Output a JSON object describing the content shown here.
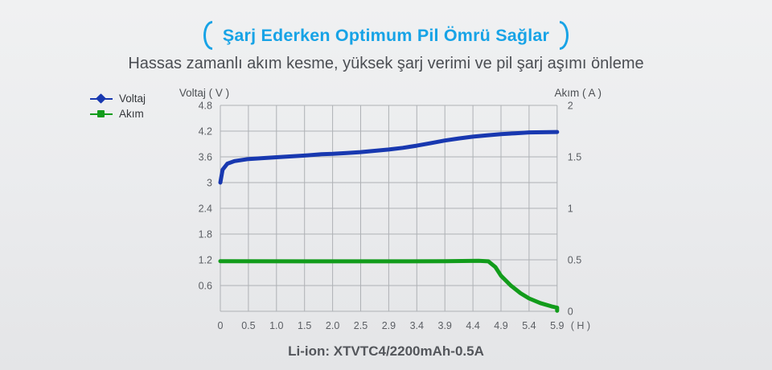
{
  "header": {
    "title": "Şarj Ederken Optimum Pil Ömrü Sağlar",
    "subtitle": "Hassas zamanlı akım kesme, yüksek şarj verimi ve pil şarj aşımı önleme",
    "accent_color": "#17a3e6"
  },
  "legend": {
    "items": [
      {
        "label": "Voltaj",
        "color": "#1838b0",
        "marker": "diamond"
      },
      {
        "label": "Akım",
        "color": "#129c1b",
        "marker": "square"
      }
    ]
  },
  "chart_data": {
    "type": "line",
    "x_mode": "grid_index",
    "x_axis": {
      "tick_labels": [
        "0",
        "0.5",
        "1.0",
        "1.5",
        "2.0",
        "2.5",
        "2.9",
        "3.4",
        "3.9",
        "4.4",
        "4.9",
        "5.4",
        "5.9"
      ],
      "unit_label": "( H )"
    },
    "left_axis": {
      "label": "Voltaj ( V )",
      "min": 0,
      "max": 4.8,
      "tick_labels": [
        "4.8",
        "4.2",
        "3.6",
        "3",
        "2.4",
        "1.8",
        "1.2",
        "0.6"
      ]
    },
    "right_axis": {
      "label": "Akım ( A )",
      "min": 0,
      "max": 2,
      "tick_labels": [
        "2",
        "1.5",
        "1",
        "0.5",
        "0"
      ]
    },
    "grid_color": "#aeb1b5",
    "tick_text_color": "#5b5e63",
    "axis_title_color": "#4d5054",
    "series": [
      {
        "name": "Voltaj",
        "axis": "left",
        "color": "#1838b0",
        "points": [
          [
            0,
            3.0
          ],
          [
            0.08,
            3.3
          ],
          [
            0.25,
            3.44
          ],
          [
            0.5,
            3.5
          ],
          [
            1,
            3.55
          ],
          [
            2,
            3.59
          ],
          [
            3,
            3.63
          ],
          [
            3.6,
            3.66
          ],
          [
            4,
            3.67
          ],
          [
            4.5,
            3.69
          ],
          [
            5,
            3.71
          ],
          [
            5.5,
            3.74
          ],
          [
            6,
            3.77
          ],
          [
            6.5,
            3.81
          ],
          [
            7,
            3.86
          ],
          [
            7.5,
            3.92
          ],
          [
            8,
            3.98
          ],
          [
            8.5,
            4.03
          ],
          [
            9,
            4.07
          ],
          [
            9.5,
            4.1
          ],
          [
            10,
            4.13
          ],
          [
            10.5,
            4.15
          ],
          [
            11,
            4.17
          ],
          [
            12,
            4.18
          ]
        ]
      },
      {
        "name": "Akım",
        "axis": "right",
        "color": "#129c1b",
        "points": [
          [
            0,
            0.487
          ],
          [
            3,
            0.485
          ],
          [
            6,
            0.485
          ],
          [
            8,
            0.487
          ],
          [
            9.2,
            0.49
          ],
          [
            9.55,
            0.485
          ],
          [
            9.8,
            0.43
          ],
          [
            10,
            0.345
          ],
          [
            10.35,
            0.25
          ],
          [
            10.7,
            0.175
          ],
          [
            11,
            0.125
          ],
          [
            11.4,
            0.08
          ],
          [
            11.8,
            0.048
          ],
          [
            12,
            0.035
          ],
          [
            12,
            0.005
          ]
        ]
      }
    ]
  },
  "caption": "Li-ion: XTVTC4/2200mAh-0.5A"
}
